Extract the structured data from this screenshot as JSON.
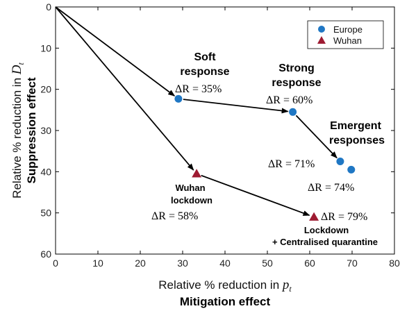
{
  "colors": {
    "europe": "#1f77c4",
    "wuhan": "#9e1b32",
    "axis": "#000000"
  },
  "chart_data": {
    "type": "scatter",
    "xlim": [
      0,
      80
    ],
    "ylim": [
      60,
      0
    ],
    "y_inverted": true,
    "grid": false,
    "legend_position": "top-right",
    "x_ticks": [
      "0",
      "10",
      "20",
      "30",
      "40",
      "50",
      "60",
      "70",
      "80"
    ],
    "y_ticks": [
      "0",
      "10",
      "20",
      "30",
      "40",
      "50",
      "60"
    ],
    "xlabel_line1_text": "Relative % reduction in ",
    "xlabel_line1_var": "p",
    "xlabel_line1_sub": "t",
    "xlabel_line2": "Mitigation effect",
    "ylabel_line1_text": "Relative % reduction in ",
    "ylabel_line1_var": "D",
    "ylabel_line1_sub": "t",
    "ylabel_line2": "Suppression effect",
    "origin": [
      0,
      0
    ],
    "series": [
      {
        "name": "Europe",
        "marker": "circle",
        "points": [
          {
            "x": 29,
            "y": 22.3,
            "dr": "ΔR = 35%"
          },
          {
            "x": 56,
            "y": 25.5,
            "dr": "ΔR = 60%"
          },
          {
            "x": 67.2,
            "y": 37.5,
            "dr": "ΔR = 71%"
          },
          {
            "x": 69.8,
            "y": 39.5,
            "dr": "ΔR = 74%"
          }
        ]
      },
      {
        "name": "Wuhan",
        "marker": "triangle",
        "points": [
          {
            "x": 33.3,
            "y": 40.5,
            "dr": "ΔR = 58%"
          },
          {
            "x": 61,
            "y": 51,
            "dr": "ΔR = 79%"
          }
        ]
      }
    ],
    "arrows": [
      {
        "from": [
          0,
          0
        ],
        "to": [
          29,
          22.3
        ]
      },
      {
        "from": [
          29,
          22.3
        ],
        "to": [
          56,
          25.5
        ]
      },
      {
        "from": [
          56,
          25.5
        ],
        "to": [
          67.2,
          37.5
        ]
      },
      {
        "from": [
          0,
          0
        ],
        "to": [
          33.3,
          40.5
        ]
      },
      {
        "from": [
          33.3,
          40.5
        ],
        "to": [
          61,
          51
        ]
      }
    ],
    "annotations": {
      "soft": [
        "Soft",
        "response"
      ],
      "strong": [
        "Strong",
        "response"
      ],
      "emergent": [
        "Emergent",
        "responses"
      ],
      "wuhan_lockdown": [
        "Wuhan",
        "lockdown"
      ],
      "lockdown_cq": [
        "Lockdown",
        "+ Centralised quarantine"
      ]
    }
  }
}
